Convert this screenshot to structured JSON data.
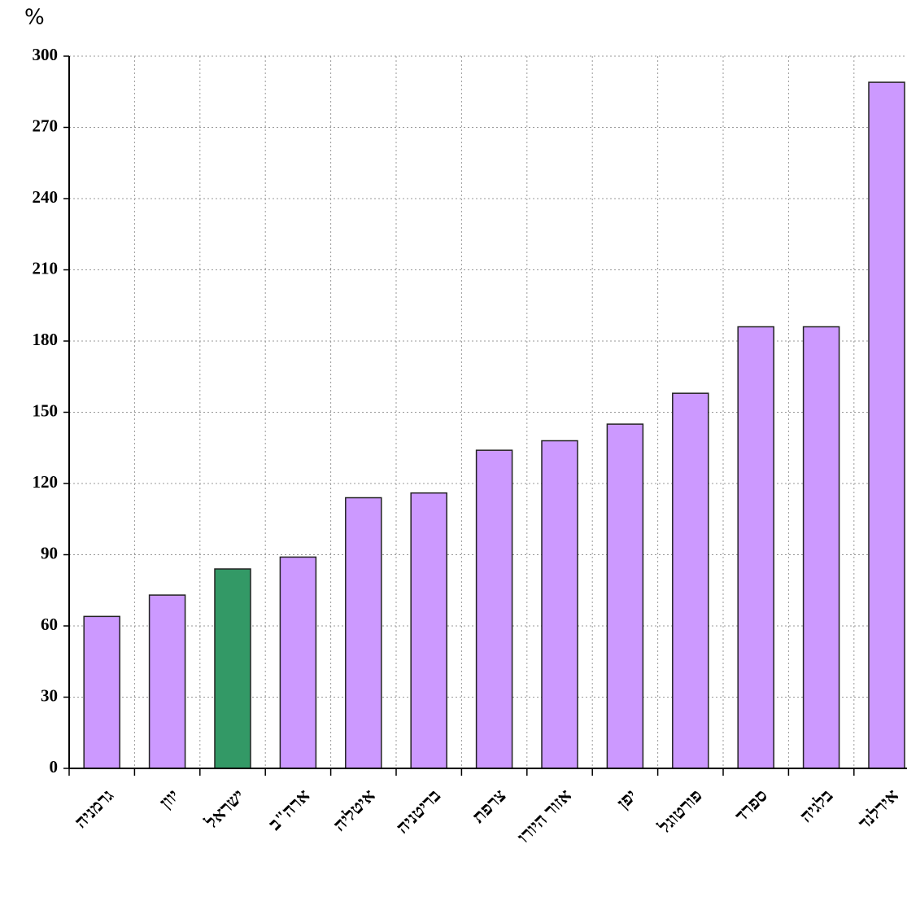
{
  "chart_data": {
    "type": "bar",
    "y_unit": "%",
    "categories": [
      "גרמניה",
      "יוון",
      "ישראל",
      "ארה\"ב",
      "איטליה",
      "בריטניה",
      "צרפת",
      "אזור היורו",
      "יפן",
      "פורטוגל",
      "ספרד",
      "בלגיה",
      "אירלנד"
    ],
    "values": [
      64,
      73,
      84,
      89,
      114,
      116,
      134,
      138,
      145,
      158,
      186,
      186,
      289
    ],
    "colors": [
      "#cc99ff",
      "#cc99ff",
      "#339966",
      "#cc99ff",
      "#cc99ff",
      "#cc99ff",
      "#cc99ff",
      "#cc99ff",
      "#cc99ff",
      "#cc99ff",
      "#cc99ff",
      "#cc99ff",
      "#cc99ff"
    ],
    "ylim": [
      0,
      300
    ],
    "yticks": [
      0,
      30,
      60,
      90,
      120,
      150,
      180,
      210,
      240,
      270,
      300
    ],
    "grid": true
  }
}
